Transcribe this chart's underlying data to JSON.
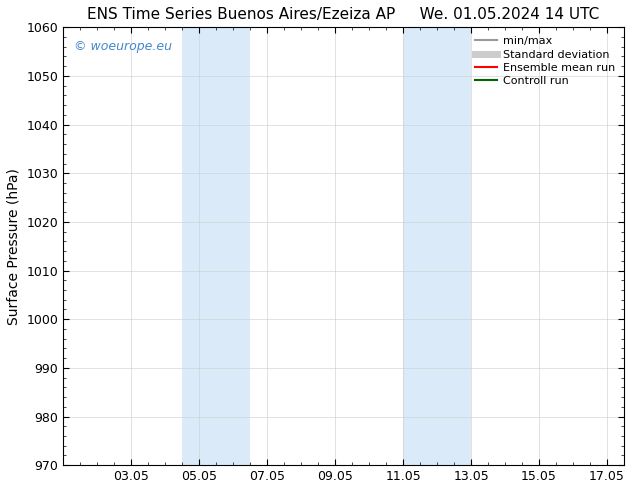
{
  "title_left": "ENS Time Series Buenos Aires/Ezeiza AP",
  "title_right": "We. 01.05.2024 14 UTC",
  "ylabel": "Surface Pressure (hPa)",
  "ylim": [
    970,
    1060
  ],
  "yticks": [
    970,
    980,
    990,
    1000,
    1010,
    1020,
    1030,
    1040,
    1050,
    1060
  ],
  "xtick_positions": [
    2,
    4,
    6,
    8,
    10,
    12,
    14,
    16
  ],
  "xtick_labels": [
    "03.05",
    "05.05",
    "07.05",
    "09.05",
    "11.05",
    "13.05",
    "15.05",
    "17.05"
  ],
  "xlim": [
    0,
    16.5
  ],
  "shaded_bands": [
    {
      "x_start": 3.5,
      "x_end": 5.5
    },
    {
      "x_start": 10.0,
      "x_end": 12.0
    }
  ],
  "shaded_color": "#daeaf8",
  "watermark_text": "© woeurope.eu",
  "watermark_color": "#4488cc",
  "legend_items": [
    {
      "label": "min/max",
      "color": "#999999",
      "lw": 1.5
    },
    {
      "label": "Standard deviation",
      "color": "#cccccc",
      "lw": 5
    },
    {
      "label": "Ensemble mean run",
      "color": "#ff0000",
      "lw": 1.5
    },
    {
      "label": "Controll run",
      "color": "#006600",
      "lw": 1.5
    }
  ],
  "bg_color": "#ffffff",
  "title_fontsize": 11,
  "ylabel_fontsize": 10,
  "tick_fontsize": 9,
  "legend_fontsize": 8,
  "watermark_fontsize": 9
}
